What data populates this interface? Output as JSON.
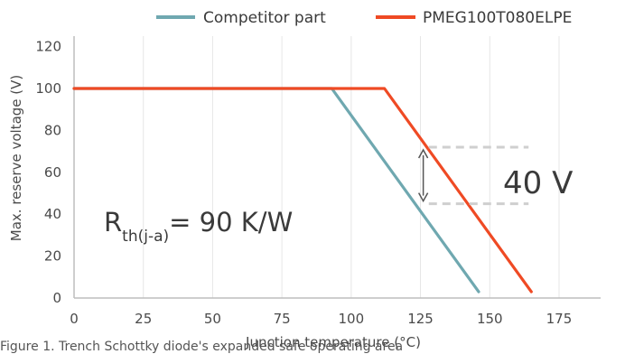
{
  "chart_data": {
    "type": "line",
    "xlabel": "Junction temperature (°C)",
    "ylabel": "Max. reserve voltage (V)",
    "xlim": [
      0,
      190
    ],
    "ylim": [
      0,
      125
    ],
    "xticks": [
      0,
      25,
      50,
      75,
      100,
      125,
      150,
      175
    ],
    "yticks": [
      0,
      20,
      40,
      60,
      80,
      100,
      120
    ],
    "grid": "vertical",
    "legend_position": "top",
    "series": [
      {
        "name": "Competitor part",
        "color": "#6fa8b0",
        "x": [
          0,
          93,
          146
        ],
        "y": [
          100,
          100,
          3
        ]
      },
      {
        "name": "PMEG100T080ELPE",
        "color": "#ef4a24",
        "x": [
          0,
          112,
          165
        ],
        "y": [
          100,
          100,
          3
        ]
      }
    ],
    "annotations": {
      "delta_label": "40 V",
      "delta_upper_y": 72,
      "delta_lower_y": 45,
      "delta_x_start": 128,
      "delta_x_end": 164,
      "arrow_x": 126,
      "rth_main": "R",
      "rth_sub": "th(j-a)",
      "rth_value": "= 90 K/W"
    },
    "caption": "Figure 1. Trench Schottky diode's expanded safe operating area"
  }
}
